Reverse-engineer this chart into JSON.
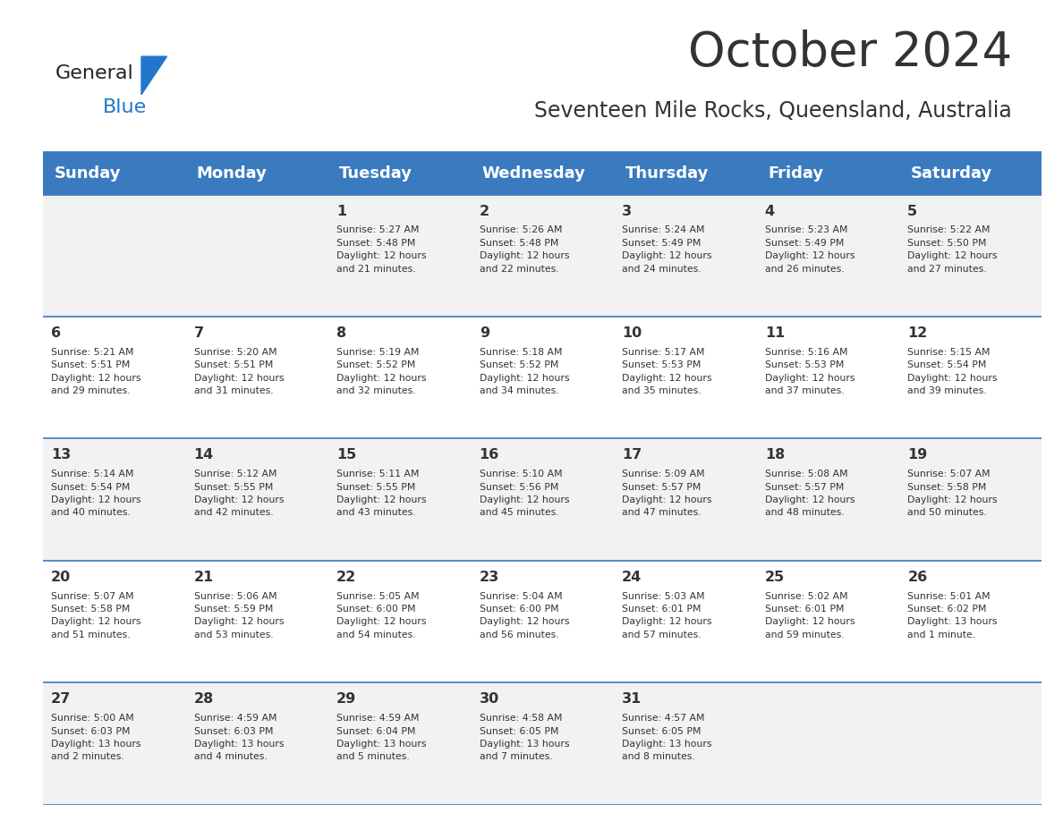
{
  "title": "October 2024",
  "subtitle": "Seventeen Mile Rocks, Queensland, Australia",
  "header_bg": "#3a7abf",
  "header_text": "#ffffff",
  "row_bg_even": "#f2f2f2",
  "row_bg_odd": "#ffffff",
  "border_color": "#3a7abf",
  "text_color": "#333333",
  "days_of_week": [
    "Sunday",
    "Monday",
    "Tuesday",
    "Wednesday",
    "Thursday",
    "Friday",
    "Saturday"
  ],
  "weeks": [
    [
      {
        "day": "",
        "info": ""
      },
      {
        "day": "",
        "info": ""
      },
      {
        "day": "1",
        "info": "Sunrise: 5:27 AM\nSunset: 5:48 PM\nDaylight: 12 hours\nand 21 minutes."
      },
      {
        "day": "2",
        "info": "Sunrise: 5:26 AM\nSunset: 5:48 PM\nDaylight: 12 hours\nand 22 minutes."
      },
      {
        "day": "3",
        "info": "Sunrise: 5:24 AM\nSunset: 5:49 PM\nDaylight: 12 hours\nand 24 minutes."
      },
      {
        "day": "4",
        "info": "Sunrise: 5:23 AM\nSunset: 5:49 PM\nDaylight: 12 hours\nand 26 minutes."
      },
      {
        "day": "5",
        "info": "Sunrise: 5:22 AM\nSunset: 5:50 PM\nDaylight: 12 hours\nand 27 minutes."
      }
    ],
    [
      {
        "day": "6",
        "info": "Sunrise: 5:21 AM\nSunset: 5:51 PM\nDaylight: 12 hours\nand 29 minutes."
      },
      {
        "day": "7",
        "info": "Sunrise: 5:20 AM\nSunset: 5:51 PM\nDaylight: 12 hours\nand 31 minutes."
      },
      {
        "day": "8",
        "info": "Sunrise: 5:19 AM\nSunset: 5:52 PM\nDaylight: 12 hours\nand 32 minutes."
      },
      {
        "day": "9",
        "info": "Sunrise: 5:18 AM\nSunset: 5:52 PM\nDaylight: 12 hours\nand 34 minutes."
      },
      {
        "day": "10",
        "info": "Sunrise: 5:17 AM\nSunset: 5:53 PM\nDaylight: 12 hours\nand 35 minutes."
      },
      {
        "day": "11",
        "info": "Sunrise: 5:16 AM\nSunset: 5:53 PM\nDaylight: 12 hours\nand 37 minutes."
      },
      {
        "day": "12",
        "info": "Sunrise: 5:15 AM\nSunset: 5:54 PM\nDaylight: 12 hours\nand 39 minutes."
      }
    ],
    [
      {
        "day": "13",
        "info": "Sunrise: 5:14 AM\nSunset: 5:54 PM\nDaylight: 12 hours\nand 40 minutes."
      },
      {
        "day": "14",
        "info": "Sunrise: 5:12 AM\nSunset: 5:55 PM\nDaylight: 12 hours\nand 42 minutes."
      },
      {
        "day": "15",
        "info": "Sunrise: 5:11 AM\nSunset: 5:55 PM\nDaylight: 12 hours\nand 43 minutes."
      },
      {
        "day": "16",
        "info": "Sunrise: 5:10 AM\nSunset: 5:56 PM\nDaylight: 12 hours\nand 45 minutes."
      },
      {
        "day": "17",
        "info": "Sunrise: 5:09 AM\nSunset: 5:57 PM\nDaylight: 12 hours\nand 47 minutes."
      },
      {
        "day": "18",
        "info": "Sunrise: 5:08 AM\nSunset: 5:57 PM\nDaylight: 12 hours\nand 48 minutes."
      },
      {
        "day": "19",
        "info": "Sunrise: 5:07 AM\nSunset: 5:58 PM\nDaylight: 12 hours\nand 50 minutes."
      }
    ],
    [
      {
        "day": "20",
        "info": "Sunrise: 5:07 AM\nSunset: 5:58 PM\nDaylight: 12 hours\nand 51 minutes."
      },
      {
        "day": "21",
        "info": "Sunrise: 5:06 AM\nSunset: 5:59 PM\nDaylight: 12 hours\nand 53 minutes."
      },
      {
        "day": "22",
        "info": "Sunrise: 5:05 AM\nSunset: 6:00 PM\nDaylight: 12 hours\nand 54 minutes."
      },
      {
        "day": "23",
        "info": "Sunrise: 5:04 AM\nSunset: 6:00 PM\nDaylight: 12 hours\nand 56 minutes."
      },
      {
        "day": "24",
        "info": "Sunrise: 5:03 AM\nSunset: 6:01 PM\nDaylight: 12 hours\nand 57 minutes."
      },
      {
        "day": "25",
        "info": "Sunrise: 5:02 AM\nSunset: 6:01 PM\nDaylight: 12 hours\nand 59 minutes."
      },
      {
        "day": "26",
        "info": "Sunrise: 5:01 AM\nSunset: 6:02 PM\nDaylight: 13 hours\nand 1 minute."
      }
    ],
    [
      {
        "day": "27",
        "info": "Sunrise: 5:00 AM\nSunset: 6:03 PM\nDaylight: 13 hours\nand 2 minutes."
      },
      {
        "day": "28",
        "info": "Sunrise: 4:59 AM\nSunset: 6:03 PM\nDaylight: 13 hours\nand 4 minutes."
      },
      {
        "day": "29",
        "info": "Sunrise: 4:59 AM\nSunset: 6:04 PM\nDaylight: 13 hours\nand 5 minutes."
      },
      {
        "day": "30",
        "info": "Sunrise: 4:58 AM\nSunset: 6:05 PM\nDaylight: 13 hours\nand 7 minutes."
      },
      {
        "day": "31",
        "info": "Sunrise: 4:57 AM\nSunset: 6:05 PM\nDaylight: 13 hours\nand 8 minutes."
      },
      {
        "day": "",
        "info": ""
      },
      {
        "day": "",
        "info": ""
      }
    ]
  ],
  "logo_general_color": "#222222",
  "logo_blue_color": "#2277cc",
  "logo_triangle_color": "#2277cc"
}
